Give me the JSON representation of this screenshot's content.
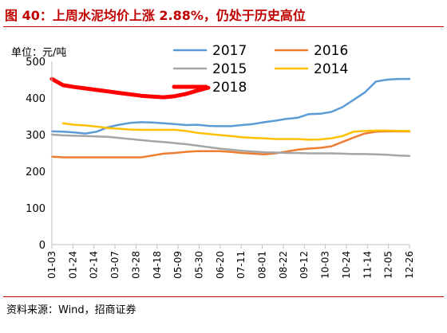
{
  "title": "图 40：上周水泥均价上涨 2.88%，仍处于历史高位",
  "source": "资料来源：Wind，招商证券",
  "chart_data": {
    "type": "line",
    "ylabel": "单位：元/吨",
    "ylim": [
      0,
      500
    ],
    "yticks": [
      0,
      100,
      200,
      300,
      400,
      500
    ],
    "grid": false,
    "legend_placement": "top-right",
    "x_labels": [
      "01-03",
      "01-24",
      "02-14",
      "03-07",
      "03-28",
      "04-18",
      "05-09",
      "05-30",
      "06-20",
      "07-11",
      "08-01",
      "08-22",
      "09-12",
      "10-03",
      "10-24",
      "11-14",
      "12-05",
      "12-26"
    ],
    "series": [
      {
        "name": "2017",
        "color": "#5b9bd5",
        "width": 2.5,
        "values": [
          309,
          308,
          306,
          303,
          308,
          320,
          327,
          332,
          334,
          333,
          331,
          329,
          326,
          327,
          324,
          323,
          323,
          326,
          329,
          334,
          338,
          343,
          346,
          356,
          357,
          362,
          375,
          395,
          415,
          445,
          450,
          452,
          452
        ]
      },
      {
        "name": "2016",
        "color": "#ed7d31",
        "width": 2.5,
        "values": [
          240,
          238,
          238,
          238,
          238,
          238,
          238,
          238,
          238,
          243,
          248,
          250,
          253,
          255,
          255,
          255,
          253,
          250,
          248,
          246,
          249,
          254,
          259,
          262,
          264,
          268,
          280,
          292,
          303,
          308,
          309,
          309,
          309
        ]
      },
      {
        "name": "2015",
        "color": "#a5a5a5",
        "width": 2.5,
        "values": [
          300,
          298,
          297,
          296,
          295,
          294,
          291,
          288,
          285,
          282,
          280,
          277,
          274,
          270,
          266,
          262,
          259,
          256,
          254,
          252,
          251,
          250,
          250,
          249,
          249,
          249,
          248,
          247,
          247,
          246,
          245,
          243,
          242
        ]
      },
      {
        "name": "2014",
        "color": "#ffc000",
        "width": 2.5,
        "values": [
          null,
          331,
          327,
          325,
          322,
          318,
          316,
          314,
          313,
          313,
          313,
          313,
          310,
          305,
          302,
          299,
          296,
          293,
          291,
          290,
          288,
          288,
          288,
          286,
          287,
          290,
          296,
          308,
          310,
          311,
          311,
          310,
          310
        ]
      },
      {
        "name": "2018",
        "color": "#ff0000",
        "width": 5,
        "values": [
          452,
          435,
          430,
          426,
          422,
          418,
          414,
          410,
          406,
          404,
          402,
          405,
          411,
          420,
          428,
          null,
          null,
          null,
          null,
          null,
          null,
          null,
          null,
          null,
          null,
          null,
          null,
          null,
          null,
          null,
          null,
          null,
          null
        ]
      }
    ]
  }
}
